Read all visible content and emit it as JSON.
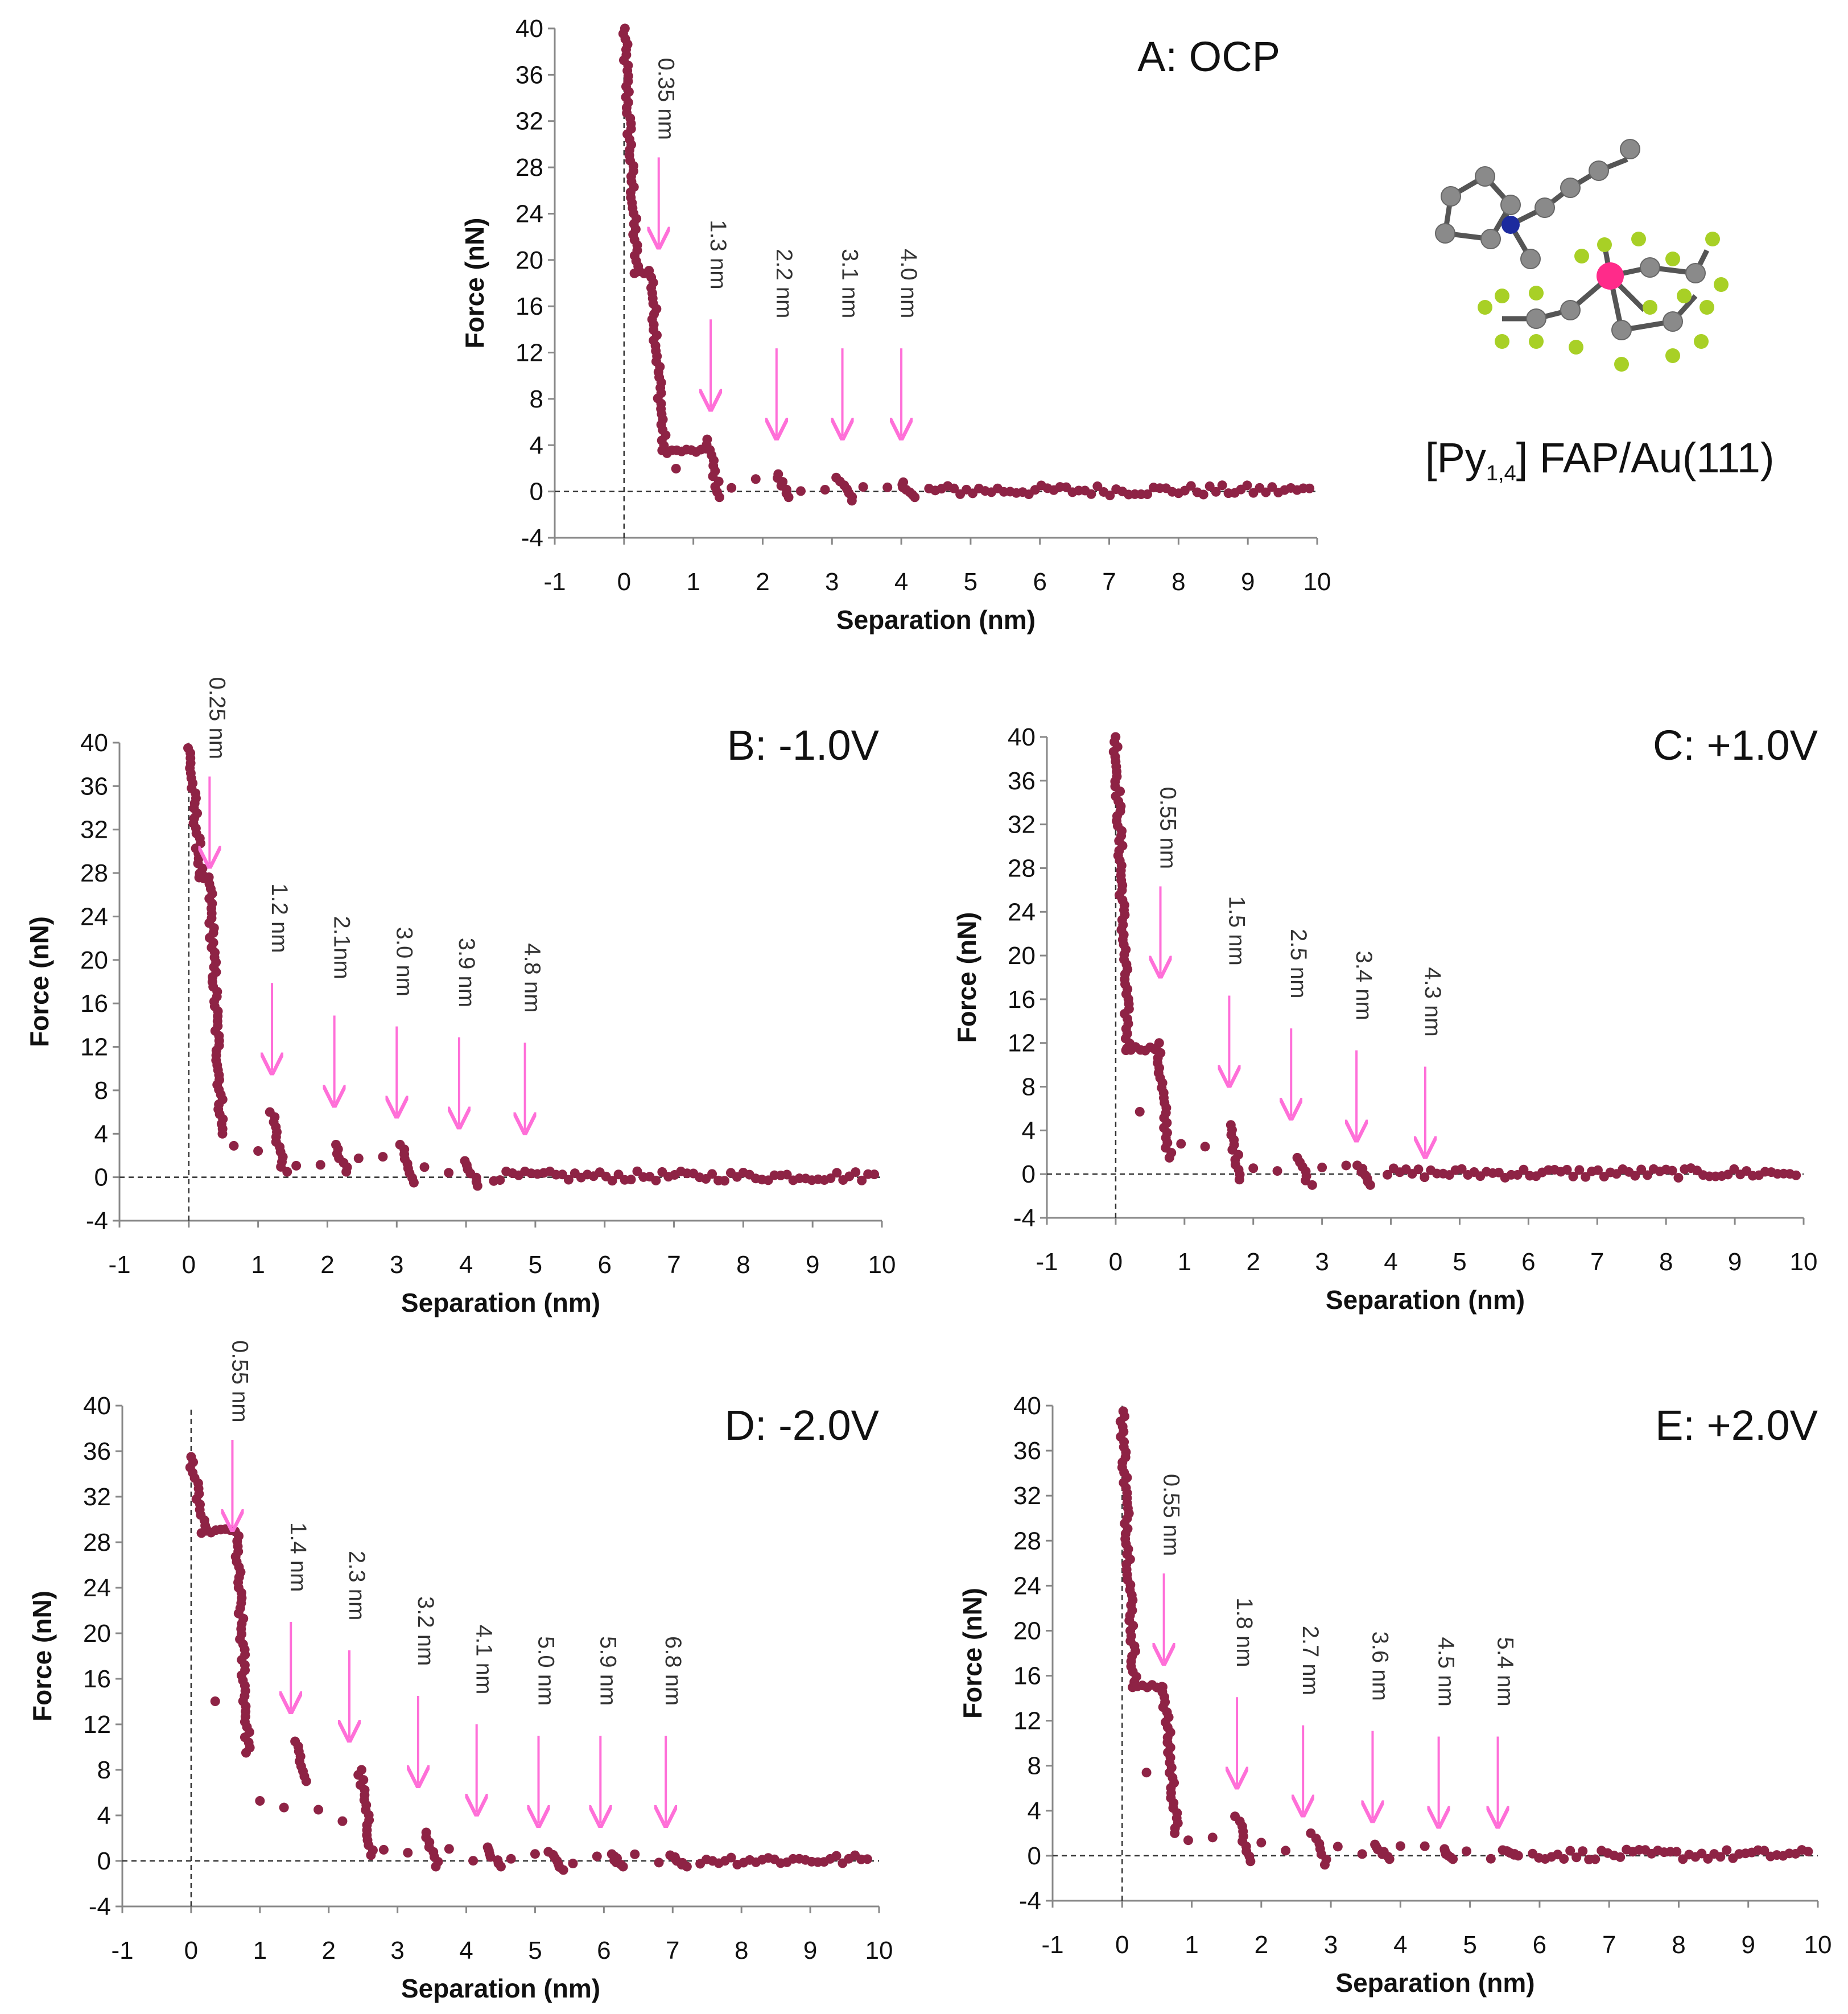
{
  "figure": {
    "legend_text": {
      "prefix": "[Py",
      "subscript": "1,4",
      "suffix": "] FAP/Au(111)"
    },
    "molecule_icon": "pyrrolidinium-fap-molecule-icon",
    "colors": {
      "marker": "#8e2345",
      "arrow": "#ff6fd8",
      "axis": "#888888"
    }
  },
  "chart_data": [
    {
      "id": "A",
      "type": "scatter",
      "title": "A: OCP",
      "xlabel": "Separation (nm)",
      "ylabel": "Force (nN)",
      "xlim": [
        -1,
        10
      ],
      "ylim": [
        -4,
        40
      ],
      "xticks": [
        -1,
        0,
        1,
        2,
        3,
        4,
        5,
        6,
        7,
        8,
        9,
        10
      ],
      "yticks": [
        -4,
        0,
        4,
        8,
        12,
        16,
        20,
        24,
        28,
        32,
        36,
        40
      ],
      "steps": [
        {
          "x": 0.0,
          "y_top": 40,
          "y_bottom": 19
        },
        {
          "x": 0.4,
          "y_top": 18.5,
          "y_bottom": 3.5
        },
        {
          "x": 1.2,
          "y_top": 4.5,
          "y_bottom": -0.5
        },
        {
          "x": 2.2,
          "y_top": 1.5,
          "y_bottom": -0.5
        },
        {
          "x": 3.1,
          "y_top": 1.2,
          "y_bottom": -0.8
        },
        {
          "x": 4.0,
          "y_top": 0.8,
          "y_bottom": -0.5
        }
      ],
      "annotations": [
        {
          "label": "0.35 nm",
          "x": 0.5,
          "y": 21
        },
        {
          "label": "1.3 nm",
          "x": 1.25,
          "y": 7
        },
        {
          "label": "2.2 nm",
          "x": 2.2,
          "y": 4.5
        },
        {
          "label": "3.1 nm",
          "x": 3.15,
          "y": 4.5
        },
        {
          "label": "4.0 nm",
          "x": 4.0,
          "y": 4.5
        }
      ]
    },
    {
      "id": "B",
      "type": "scatter",
      "title": "B: -1.0V",
      "xlabel": "Separation (nm)",
      "ylabel": "Force (nN)",
      "xlim": [
        -1,
        10
      ],
      "ylim": [
        -4,
        40
      ],
      "xticks": [
        -1,
        0,
        1,
        2,
        3,
        4,
        5,
        6,
        7,
        8,
        9,
        10
      ],
      "yticks": [
        -4,
        0,
        4,
        8,
        12,
        16,
        20,
        24,
        28,
        32,
        36,
        40
      ],
      "steps": [
        {
          "x": 0.0,
          "y_top": 39.5,
          "y_bottom": 27.5
        },
        {
          "x": 0.3,
          "y_top": 27,
          "y_bottom": 4
        },
        {
          "x": 1.2,
          "y_top": 6,
          "y_bottom": 0.5
        },
        {
          "x": 2.1,
          "y_top": 3,
          "y_bottom": 0.5
        },
        {
          "x": 3.05,
          "y_top": 3,
          "y_bottom": -0.5
        },
        {
          "x": 4.0,
          "y_top": 1.5,
          "y_bottom": -0.8
        }
      ],
      "annotations": [
        {
          "label": "0.25 nm",
          "x": 0.3,
          "y": 28.5
        },
        {
          "label": "1.2 nm",
          "x": 1.2,
          "y": 9.5
        },
        {
          "label": "2.1nm",
          "x": 2.1,
          "y": 6.5
        },
        {
          "label": "3.0 nm",
          "x": 3.0,
          "y": 5.5
        },
        {
          "label": "3.9 nm",
          "x": 3.9,
          "y": 4.5
        },
        {
          "label": "4.8 nm",
          "x": 4.85,
          "y": 4
        }
      ]
    },
    {
      "id": "C",
      "type": "scatter",
      "title": "C: +1.0V",
      "xlabel": "Separation (nm)",
      "ylabel": "Force (nN)",
      "xlim": [
        -1,
        10
      ],
      "ylim": [
        -4,
        40
      ],
      "xticks": [
        -1,
        0,
        1,
        2,
        3,
        4,
        5,
        6,
        7,
        8,
        9,
        10
      ],
      "yticks": [
        -4,
        0,
        4,
        8,
        12,
        16,
        20,
        24,
        28,
        32,
        36,
        40
      ],
      "steps": [
        {
          "x": 0.0,
          "y_top": 40,
          "y_bottom": 11.5
        },
        {
          "x": 0.6,
          "y_top": 12,
          "y_bottom": 1.5
        },
        {
          "x": 1.65,
          "y_top": 4.5,
          "y_bottom": -0.5
        },
        {
          "x": 2.65,
          "y_top": 1.5,
          "y_bottom": -1
        },
        {
          "x": 3.55,
          "y_top": 0.8,
          "y_bottom": -1
        }
      ],
      "annotations": [
        {
          "label": "0.55 nm",
          "x": 0.65,
          "y": 18
        },
        {
          "label": "1.5 nm",
          "x": 1.65,
          "y": 8
        },
        {
          "label": "2.5 nm",
          "x": 2.55,
          "y": 5
        },
        {
          "label": "3.4 nm",
          "x": 3.5,
          "y": 3
        },
        {
          "label": "4.3 nm",
          "x": 4.5,
          "y": 1.5
        }
      ]
    },
    {
      "id": "D",
      "type": "scatter",
      "title": "D: -2.0V",
      "xlabel": "Separation (nm)",
      "ylabel": "Force (nN)",
      "xlim": [
        -1,
        10
      ],
      "ylim": [
        -4,
        40
      ],
      "xticks": [
        -1,
        0,
        1,
        2,
        3,
        4,
        5,
        6,
        7,
        8,
        9,
        10
      ],
      "yticks": [
        -4,
        0,
        4,
        8,
        12,
        16,
        20,
        24,
        28,
        32,
        36,
        40
      ],
      "steps": [
        {
          "x": 0.0,
          "y_top": 35.5,
          "y_bottom": 29
        },
        {
          "x": 0.65,
          "y_top": 29,
          "y_bottom": 9.5
        },
        {
          "x": 1.5,
          "y_top": 10.5,
          "y_bottom": 7
        },
        {
          "x": 2.45,
          "y_top": 8,
          "y_bottom": 0.5
        },
        {
          "x": 3.4,
          "y_top": 2.5,
          "y_bottom": -0.5
        },
        {
          "x": 4.3,
          "y_top": 1.2,
          "y_bottom": -0.5
        },
        {
          "x": 5.2,
          "y_top": 0.8,
          "y_bottom": -0.8
        },
        {
          "x": 6.1,
          "y_top": 0.6,
          "y_bottom": -0.5
        },
        {
          "x": 7.0,
          "y_top": 0.5,
          "y_bottom": -0.5
        }
      ],
      "annotations": [
        {
          "label": "0.55 nm",
          "x": 0.6,
          "y": 29
        },
        {
          "label": "1.4 nm",
          "x": 1.45,
          "y": 13
        },
        {
          "label": "2.3 nm",
          "x": 2.3,
          "y": 10.5
        },
        {
          "label": "3.2 nm",
          "x": 3.3,
          "y": 6.5
        },
        {
          "label": "4.1 nm",
          "x": 4.15,
          "y": 4
        },
        {
          "label": "5.0 nm",
          "x": 5.05,
          "y": 3
        },
        {
          "label": "5.9 nm",
          "x": 5.95,
          "y": 3
        },
        {
          "label": "6.8 nm",
          "x": 6.9,
          "y": 3
        }
      ]
    },
    {
      "id": "E",
      "type": "scatter",
      "title": "E: +2.0V",
      "xlabel": "Separation (nm)",
      "ylabel": "Force (nN)",
      "xlim": [
        -1,
        10
      ],
      "ylim": [
        -4,
        40
      ],
      "xticks": [
        -1,
        0,
        1,
        2,
        3,
        4,
        5,
        6,
        7,
        8,
        9,
        10
      ],
      "yticks": [
        -4,
        0,
        4,
        8,
        12,
        16,
        20,
        24,
        28,
        32,
        36,
        40
      ],
      "steps": [
        {
          "x": 0.0,
          "y_top": 39.5,
          "y_bottom": 15
        },
        {
          "x": 0.6,
          "y_top": 15,
          "y_bottom": 2
        },
        {
          "x": 1.65,
          "y_top": 3.5,
          "y_bottom": -0.5
        },
        {
          "x": 2.75,
          "y_top": 2,
          "y_bottom": -0.8
        },
        {
          "x": 3.65,
          "y_top": 1,
          "y_bottom": -0.3
        },
        {
          "x": 4.6,
          "y_top": 0.6,
          "y_bottom": -0.3
        },
        {
          "x": 5.5,
          "y_top": 0.5,
          "y_bottom": 0
        }
      ],
      "annotations": [
        {
          "label": "0.55 nm",
          "x": 0.6,
          "y": 17
        },
        {
          "label": "1.8 nm",
          "x": 1.65,
          "y": 6
        },
        {
          "label": "2.7 nm",
          "x": 2.6,
          "y": 3.5
        },
        {
          "label": "3.6 nm",
          "x": 3.6,
          "y": 3
        },
        {
          "label": "4.5 nm",
          "x": 4.55,
          "y": 2.5
        },
        {
          "label": "5.4 nm",
          "x": 5.4,
          "y": 2.5
        }
      ]
    }
  ]
}
